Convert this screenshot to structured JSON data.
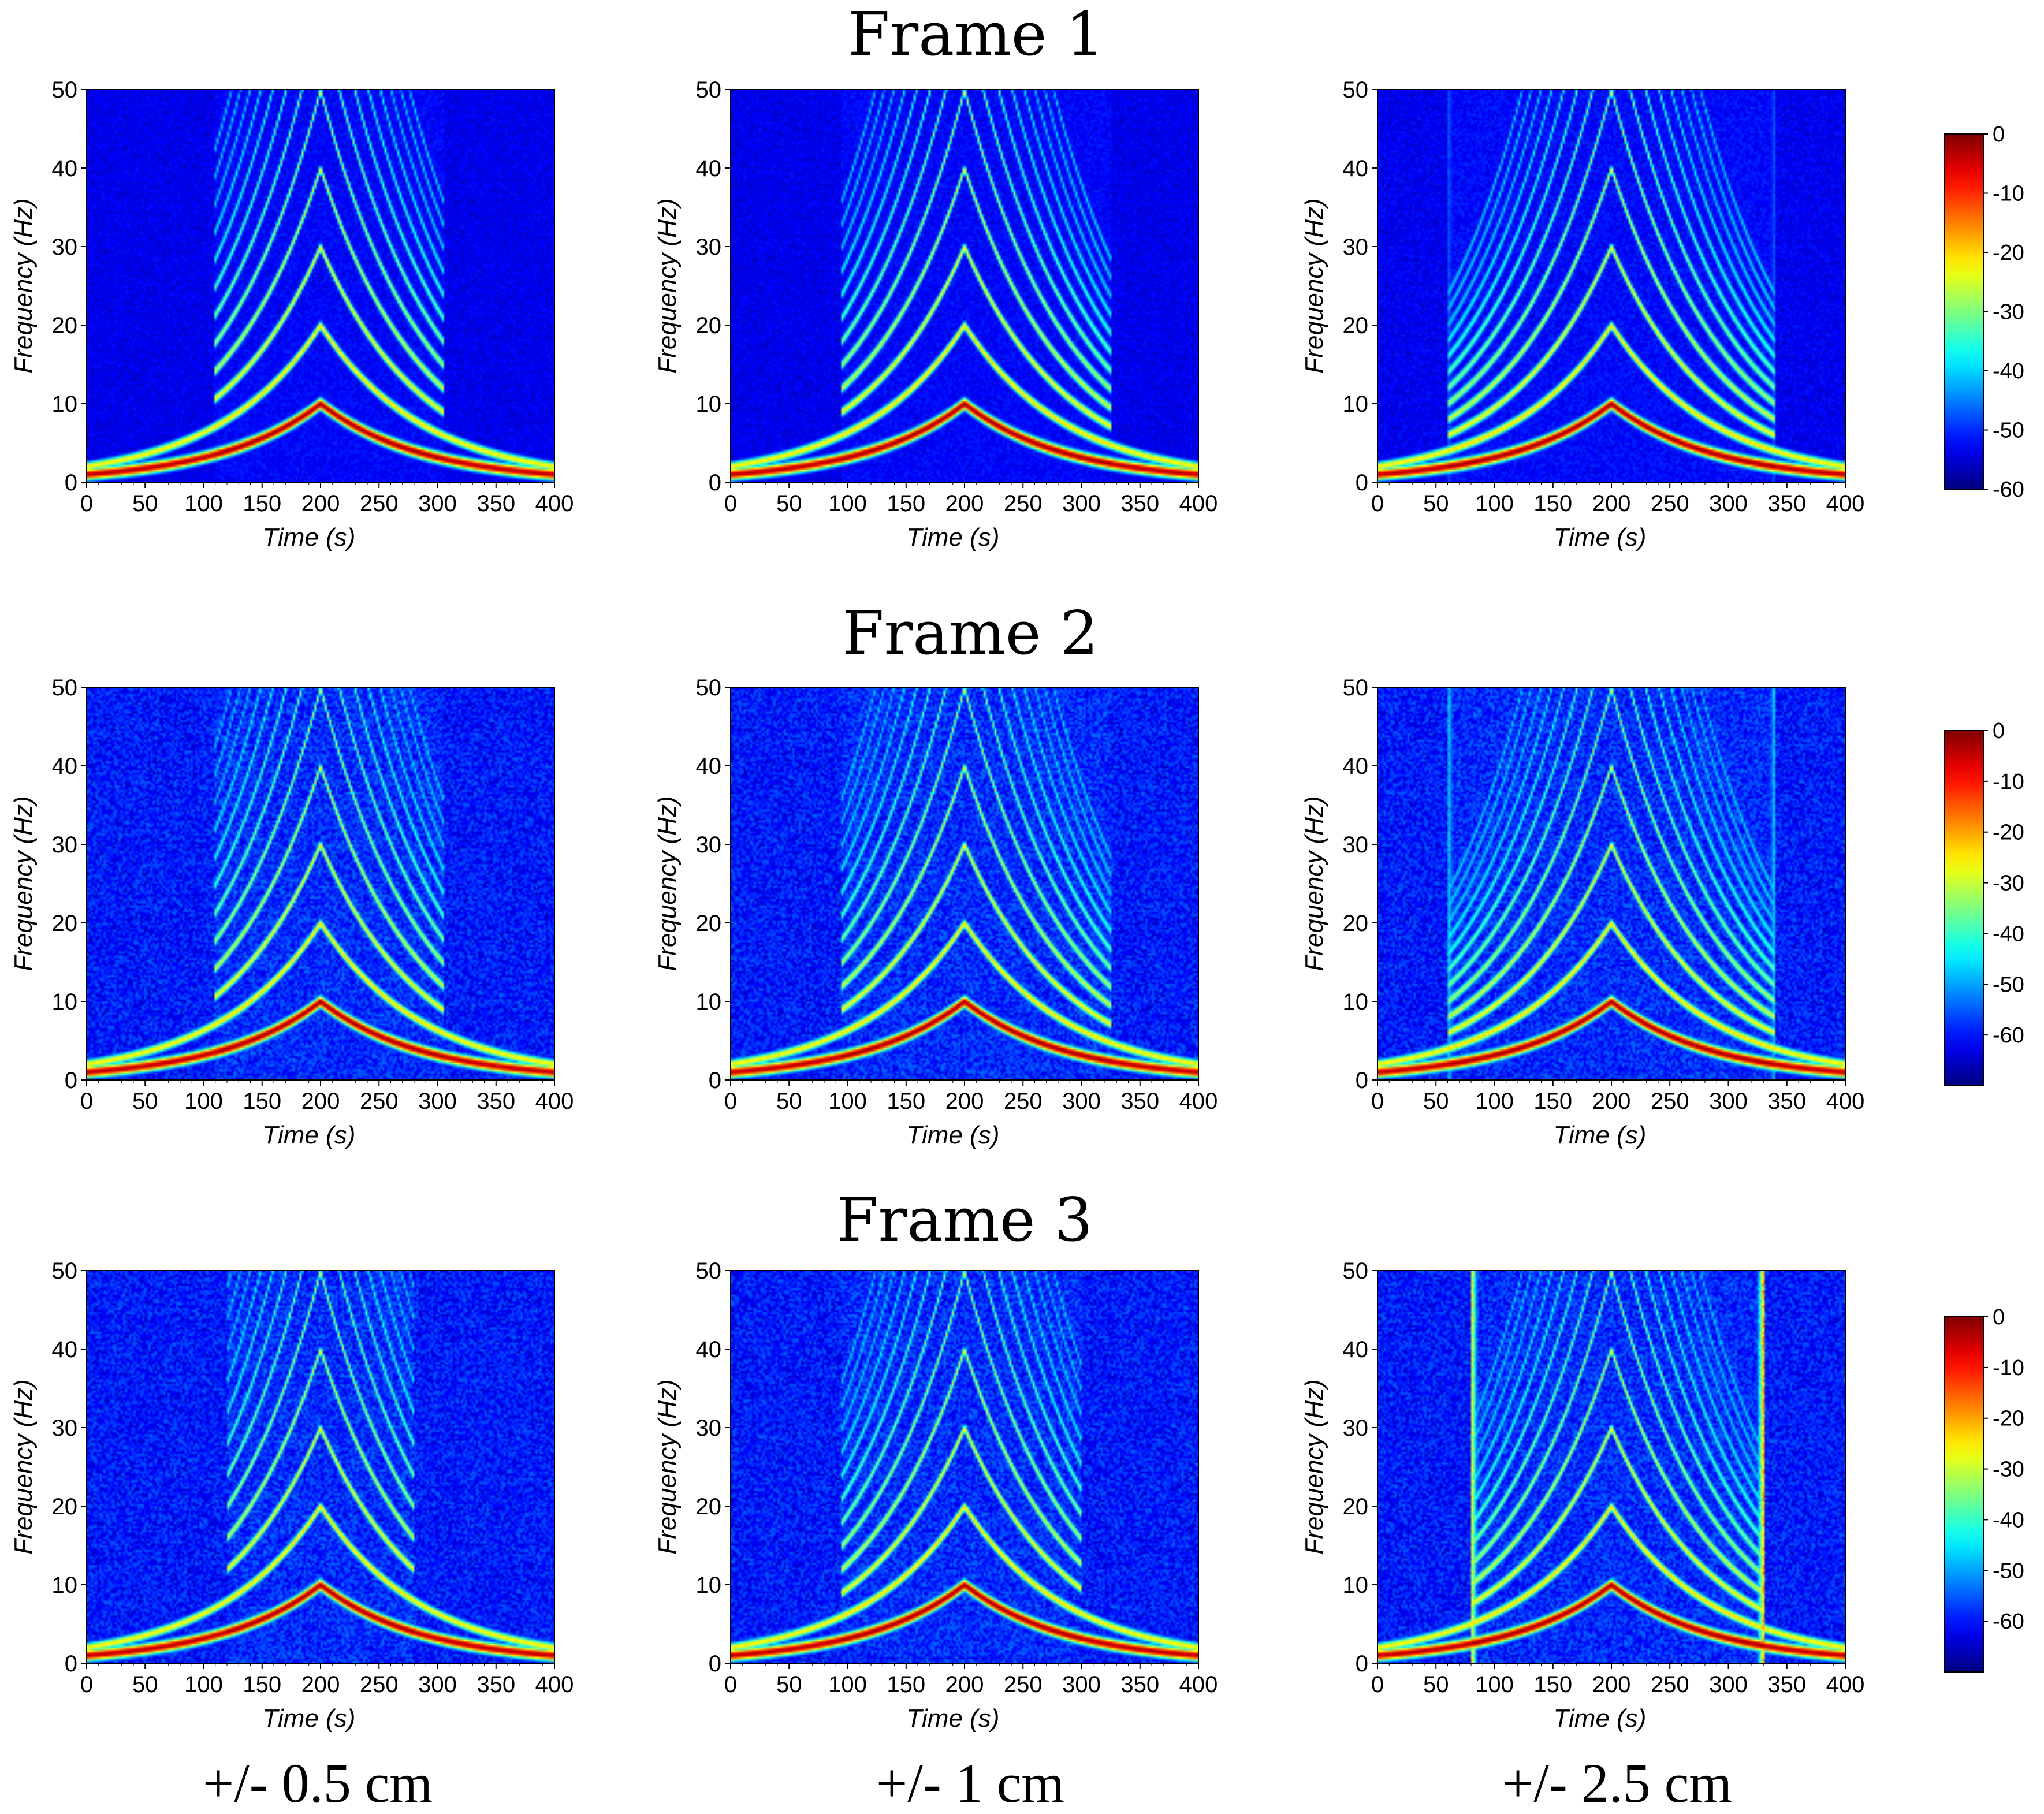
{
  "chart_data": {
    "type": "heatmap",
    "description_kind": "spectrogram grid",
    "frame_titles": [
      "Frame 1",
      "Frame 2",
      "Frame 3"
    ],
    "column_labels": [
      "+/- 0.5 cm",
      "+/- 1 cm",
      "+/- 2.5 cm"
    ],
    "xlabel": "Time (s)",
    "ylabel": "Frequency (Hz)",
    "xlim": [
      0,
      400
    ],
    "ylim": [
      0,
      50
    ],
    "xticks": [
      0,
      50,
      100,
      150,
      200,
      250,
      300,
      350,
      400
    ],
    "yticks": [
      0,
      10,
      20,
      30,
      40,
      50
    ],
    "harmonic_peak_time": 200,
    "fundamental": {
      "start_hz": 1,
      "peak_hz": 10
    },
    "colorbars": [
      {
        "range": [
          -60,
          0
        ],
        "ticks": [
          0,
          -10,
          -20,
          -30,
          -40,
          -50,
          -60
        ]
      },
      {
        "range": [
          -70,
          0
        ],
        "ticks": [
          0,
          -10,
          -20,
          -30,
          -40,
          -50,
          -60
        ]
      },
      {
        "range": [
          -70,
          0
        ],
        "ticks": [
          0,
          -10,
          -20,
          -30,
          -40,
          -50,
          -60
        ]
      }
    ],
    "panels": [
      {
        "row": 0,
        "col": 0,
        "window": [
          110,
          305
        ],
        "edge_glow": 0.05,
        "noise": 0.02
      },
      {
        "row": 0,
        "col": 1,
        "window": [
          95,
          325
        ],
        "edge_glow": 0.05,
        "noise": 0.02
      },
      {
        "row": 0,
        "col": 2,
        "window": [
          60,
          340
        ],
        "edge_glow": 0.25,
        "noise": 0.03
      },
      {
        "row": 1,
        "col": 0,
        "window": [
          110,
          305
        ],
        "edge_glow": 0.05,
        "noise": 0.1
      },
      {
        "row": 1,
        "col": 1,
        "window": [
          95,
          325
        ],
        "edge_glow": 0.1,
        "noise": 0.1
      },
      {
        "row": 1,
        "col": 2,
        "window": [
          60,
          340
        ],
        "edge_glow": 0.4,
        "noise": 0.1
      },
      {
        "row": 2,
        "col": 0,
        "window": [
          120,
          280
        ],
        "edge_glow": 0.05,
        "noise": 0.1
      },
      {
        "row": 2,
        "col": 1,
        "window": [
          95,
          300
        ],
        "edge_glow": 0.1,
        "noise": 0.1
      },
      {
        "row": 2,
        "col": 2,
        "window": [
          80,
          330
        ],
        "edge_glow": 0.75,
        "noise": 0.1
      }
    ]
  }
}
